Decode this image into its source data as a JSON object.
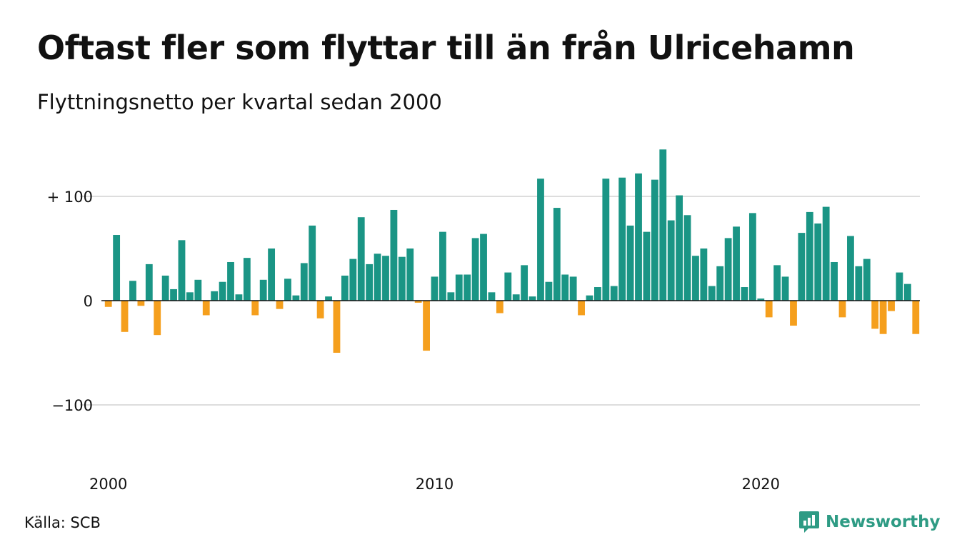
{
  "title": "Oftast fler som flyttar till än från Ulricehamn",
  "subtitle": "Flyttningsnetto per kvartal sedan 2000",
  "source": "Källa: SCB",
  "brand": "Newsworthy",
  "colors": {
    "positive": "#1a9585",
    "negative": "#f59f1d",
    "grid": "#dddddd",
    "brand": "#2e9b84"
  },
  "chart_data": {
    "type": "bar",
    "y_ticks": [
      {
        "value": 100,
        "label": "+ 100"
      },
      {
        "value": 0,
        "label": "0"
      },
      {
        "value": -100,
        "label": "−100"
      }
    ],
    "x_ticks": [
      {
        "index": 0,
        "label": "2000"
      },
      {
        "index": 40,
        "label": "2010"
      },
      {
        "index": 80,
        "label": "2020"
      }
    ],
    "ylim": [
      -140,
      150
    ],
    "grid": true,
    "values": [
      -6,
      63,
      -30,
      19,
      -5,
      35,
      -33,
      24,
      11,
      58,
      8,
      20,
      -14,
      9,
      18,
      37,
      6,
      41,
      -14,
      20,
      50,
      -8,
      21,
      5,
      36,
      72,
      -17,
      4,
      -50,
      24,
      40,
      80,
      35,
      45,
      43,
      87,
      42,
      50,
      -2,
      -48,
      23,
      66,
      8,
      25,
      25,
      60,
      64,
      8,
      -12,
      27,
      6,
      34,
      4,
      117,
      18,
      89,
      25,
      23,
      -14,
      5,
      13,
      117,
      14,
      118,
      72,
      122,
      66,
      116,
      145,
      77,
      101,
      82,
      43,
      50,
      14,
      33,
      60,
      71,
      13,
      84,
      2,
      -16,
      34,
      23,
      -24,
      65,
      85,
      74,
      90,
      37,
      -16,
      62,
      33,
      40,
      -27,
      -32,
      -10,
      27,
      16,
      -32
    ]
  }
}
